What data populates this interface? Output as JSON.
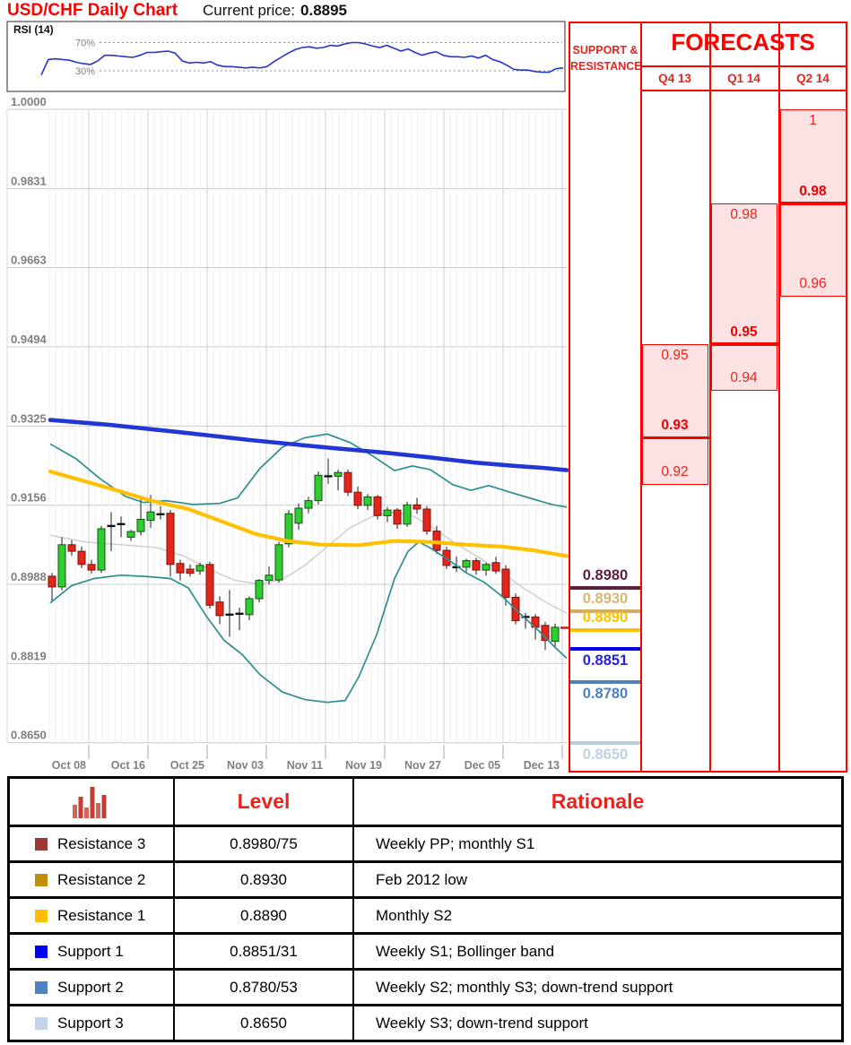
{
  "header": {
    "title": "USD/CHF Daily Chart",
    "price_label": "Current price:",
    "price_value": "0.8895"
  },
  "chart_data": {
    "type": "candlestick",
    "title": "USD/CHF Daily Chart",
    "current_price": 0.8895,
    "y_axis": {
      "labels": [
        "1.0000",
        "0.9831",
        "0.9663",
        "0.9494",
        "0.9325",
        "0.9156",
        "0.8988",
        "0.8819",
        "0.8650"
      ],
      "min": 0.865,
      "max": 1.0
    },
    "x_axis": {
      "labels": [
        "Oct 08",
        "Oct 16",
        "Oct 25",
        "Nov 03",
        "Nov 11",
        "Nov 19",
        "Nov 27",
        "Dec 05",
        "Dec 13"
      ]
    },
    "rsi": {
      "label": "RSI (14)",
      "overbought_label": "70%",
      "oversold_label": "30%",
      "line_color": "#2633cc",
      "values": [
        24,
        46,
        47,
        46,
        45,
        42,
        40,
        39,
        44,
        52,
        52,
        51,
        50,
        49,
        52,
        56,
        56,
        57,
        58,
        55,
        44,
        41,
        42,
        41,
        43,
        38,
        36,
        36,
        35,
        34,
        35,
        34,
        36,
        43,
        49,
        55,
        60,
        63,
        64,
        62,
        63,
        66,
        65,
        68,
        70,
        70,
        68,
        65,
        63,
        66,
        62,
        58,
        61,
        56,
        52,
        55,
        57,
        52,
        50,
        50,
        49,
        51,
        48,
        52,
        46,
        43,
        38,
        32,
        31,
        31,
        29,
        28,
        28,
        33,
        34
      ]
    },
    "candles_ohlc": [
      [
        0.9005,
        0.9012,
        0.8953,
        0.8982
      ],
      [
        0.8982,
        0.9088,
        0.8975,
        0.9072
      ],
      [
        0.9072,
        0.9082,
        0.9048,
        0.9058
      ],
      [
        0.9058,
        0.9068,
        0.9022,
        0.903
      ],
      [
        0.903,
        0.904,
        0.901,
        0.9018
      ],
      [
        0.9018,
        0.9112,
        0.9012,
        0.9106
      ],
      [
        0.9108,
        0.9142,
        0.9058,
        0.9112
      ],
      [
        0.9112,
        0.9132,
        0.9088,
        0.9116
      ],
      [
        0.9088,
        0.9104,
        0.908,
        0.91
      ],
      [
        0.91,
        0.9176,
        0.9092,
        0.9126
      ],
      [
        0.9124,
        0.9178,
        0.9108,
        0.9142
      ],
      [
        0.914,
        0.9154,
        0.9126,
        0.9137
      ],
      [
        0.9139,
        0.9146,
        0.9004,
        0.903
      ],
      [
        0.9032,
        0.904,
        0.8996,
        0.9012
      ],
      [
        0.902,
        0.903,
        0.9004,
        0.9011
      ],
      [
        0.9016,
        0.9034,
        0.9008,
        0.9028
      ],
      [
        0.903,
        0.9036,
        0.8936,
        0.8943
      ],
      [
        0.895,
        0.8962,
        0.8903,
        0.8921
      ],
      [
        0.8921,
        0.8976,
        0.8876,
        0.8923
      ],
      [
        0.8923,
        0.8938,
        0.889,
        0.8925
      ],
      [
        0.8923,
        0.8962,
        0.8911,
        0.8957
      ],
      [
        0.8957,
        0.8999,
        0.8949,
        0.8996
      ],
      [
        0.8996,
        0.9026,
        0.8987,
        0.9007
      ],
      [
        0.8997,
        0.9078,
        0.8991,
        0.9072
      ],
      [
        0.9074,
        0.9146,
        0.9066,
        0.9138
      ],
      [
        0.9118,
        0.916,
        0.9104,
        0.915
      ],
      [
        0.915,
        0.9174,
        0.9139,
        0.9166
      ],
      [
        0.9166,
        0.9228,
        0.9158,
        0.922
      ],
      [
        0.9221,
        0.9256,
        0.9202,
        0.9218
      ],
      [
        0.9218,
        0.9232,
        0.9188,
        0.9226
      ],
      [
        0.9226,
        0.9232,
        0.9176,
        0.9184
      ],
      [
        0.9184,
        0.9196,
        0.9148,
        0.9156
      ],
      [
        0.9156,
        0.918,
        0.9146,
        0.9174
      ],
      [
        0.9174,
        0.9178,
        0.9126,
        0.9134
      ],
      [
        0.9134,
        0.9152,
        0.912,
        0.9146
      ],
      [
        0.9146,
        0.915,
        0.9106,
        0.9116
      ],
      [
        0.9116,
        0.9164,
        0.911,
        0.9157
      ],
      [
        0.9157,
        0.9172,
        0.9138,
        0.9148
      ],
      [
        0.9148,
        0.9154,
        0.9093,
        0.9101
      ],
      [
        0.9101,
        0.9112,
        0.9052,
        0.906
      ],
      [
        0.906,
        0.9068,
        0.902,
        0.9028
      ],
      [
        0.9028,
        0.9047,
        0.9014,
        0.9024
      ],
      [
        0.9024,
        0.9042,
        0.9011,
        0.9038
      ],
      [
        0.9038,
        0.9044,
        0.9008,
        0.9018
      ],
      [
        0.9018,
        0.9034,
        0.9006,
        0.903
      ],
      [
        0.9034,
        0.9046,
        0.901,
        0.9016
      ],
      [
        0.902,
        0.9028,
        0.8942,
        0.896
      ],
      [
        0.896,
        0.8968,
        0.8902,
        0.891
      ],
      [
        0.8913,
        0.8927,
        0.8893,
        0.8918
      ],
      [
        0.8918,
        0.8924,
        0.887,
        0.8896
      ],
      [
        0.89,
        0.8908,
        0.8848,
        0.8868
      ],
      [
        0.8866,
        0.8904,
        0.8852,
        0.8896
      ]
    ],
    "overlays": {
      "ma_long_blue": {
        "color": "#2236d6",
        "points": [
          [
            56,
            0.9338
          ],
          [
            120,
            0.9328
          ],
          [
            200,
            0.9312
          ],
          [
            280,
            0.9295
          ],
          [
            360,
            0.928
          ],
          [
            430,
            0.9268
          ],
          [
            480,
            0.9258
          ],
          [
            530,
            0.9247
          ],
          [
            575,
            0.924
          ],
          [
            605,
            0.9236
          ],
          [
            632,
            0.9231
          ]
        ]
      },
      "ma_short_yellow": {
        "color": "#ffc000",
        "points": [
          [
            56,
            0.9228
          ],
          [
            90,
            0.921
          ],
          [
            130,
            0.9188
          ],
          [
            170,
            0.9165
          ],
          [
            210,
            0.9148
          ],
          [
            250,
            0.912
          ],
          [
            285,
            0.9095
          ],
          [
            320,
            0.908
          ],
          [
            360,
            0.9072
          ],
          [
            400,
            0.9071
          ],
          [
            440,
            0.908
          ],
          [
            480,
            0.9078
          ],
          [
            520,
            0.9072
          ],
          [
            560,
            0.9068
          ],
          [
            595,
            0.906
          ],
          [
            632,
            0.9048
          ]
        ]
      },
      "bollinger_upper": {
        "color": "#2f8e8e",
        "points": [
          [
            56,
            0.9287
          ],
          [
            85,
            0.9255
          ],
          [
            110,
            0.9215
          ],
          [
            140,
            0.9175
          ],
          [
            160,
            0.9162
          ],
          [
            185,
            0.9166
          ],
          [
            215,
            0.9158
          ],
          [
            245,
            0.916
          ],
          [
            265,
            0.9172
          ],
          [
            290,
            0.9235
          ],
          [
            315,
            0.928
          ],
          [
            340,
            0.93
          ],
          [
            365,
            0.9308
          ],
          [
            390,
            0.929
          ],
          [
            415,
            0.9262
          ],
          [
            440,
            0.923
          ],
          [
            460,
            0.924
          ],
          [
            480,
            0.9232
          ],
          [
            505,
            0.92
          ],
          [
            525,
            0.9188
          ],
          [
            545,
            0.9198
          ],
          [
            565,
            0.9186
          ],
          [
            590,
            0.9172
          ],
          [
            615,
            0.9158
          ],
          [
            632,
            0.9152
          ]
        ]
      },
      "bollinger_lower": {
        "color": "#2f8e8e",
        "points": [
          [
            56,
            0.8948
          ],
          [
            80,
            0.8985
          ],
          [
            105,
            0.9
          ],
          [
            135,
            0.9007
          ],
          [
            165,
            0.9004
          ],
          [
            190,
            0.9
          ],
          [
            210,
            0.898
          ],
          [
            230,
            0.892
          ],
          [
            250,
            0.8868
          ],
          [
            270,
            0.8838
          ],
          [
            290,
            0.8795
          ],
          [
            315,
            0.8758
          ],
          [
            340,
            0.8742
          ],
          [
            365,
            0.8736
          ],
          [
            385,
            0.874
          ],
          [
            400,
            0.879
          ],
          [
            420,
            0.888
          ],
          [
            440,
            0.9
          ],
          [
            455,
            0.9058
          ],
          [
            467,
            0.9078
          ],
          [
            480,
            0.9065
          ],
          [
            500,
            0.904
          ],
          [
            520,
            0.9012
          ],
          [
            540,
            0.8992
          ],
          [
            560,
            0.8962
          ],
          [
            580,
            0.8925
          ],
          [
            600,
            0.889
          ],
          [
            618,
            0.8855
          ],
          [
            632,
            0.883
          ]
        ]
      },
      "bollinger_mid": {
        "color": "#cccccc",
        "points": [
          [
            56,
            0.9092
          ],
          [
            95,
            0.9078
          ],
          [
            135,
            0.9072
          ],
          [
            175,
            0.9066
          ],
          [
            205,
            0.9048
          ],
          [
            235,
            0.9018
          ],
          [
            262,
            0.8996
          ],
          [
            290,
            0.8988
          ],
          [
            315,
            0.8998
          ],
          [
            340,
            0.9028
          ],
          [
            365,
            0.9068
          ],
          [
            390,
            0.9108
          ],
          [
            415,
            0.9132
          ],
          [
            440,
            0.9142
          ],
          [
            462,
            0.9132
          ],
          [
            485,
            0.9105
          ],
          [
            510,
            0.9072
          ],
          [
            535,
            0.9044
          ],
          [
            560,
            0.9012
          ],
          [
            585,
            0.8978
          ],
          [
            610,
            0.8948
          ],
          [
            632,
            0.8926
          ]
        ]
      }
    },
    "candle_up_color": "#2fce2f",
    "candle_down_color": "#e3251b"
  },
  "support_resistance": {
    "header_line1": "SUPPORT &",
    "header_line2": "RESISTANCE",
    "levels": [
      {
        "label": "0.8980",
        "price": 0.898,
        "side": "above",
        "line_color": "#5e1f3f",
        "text_color": "#5e1f3f"
      },
      {
        "label": "0.8930",
        "price": 0.893,
        "side": "above",
        "line_color": "#d3ad60",
        "text_color": "#d7b570"
      },
      {
        "label": "0.8890",
        "price": 0.889,
        "side": "above",
        "line_color": "#ffc000",
        "text_color": "#ffc000"
      },
      {
        "label": "0.8851",
        "price": 0.8851,
        "side": "below",
        "line_color": "#0202ee",
        "text_color": "#2525dc"
      },
      {
        "label": "0.8780",
        "price": 0.878,
        "side": "below",
        "line_color": "#4f81bd",
        "text_color": "#4f81bd"
      },
      {
        "label": "0.8650",
        "price": 0.865,
        "side": "below",
        "line_color": "#b9cfdd",
        "text_color": "#bdd3e0"
      }
    ]
  },
  "forecasts": {
    "title": "FORECASTS",
    "quarters": [
      {
        "label": "Q4 13",
        "range_high": 0.95,
        "range_low": 0.92,
        "forecast": 0.93,
        "high_label": "0.95",
        "forecast_label": "0.93",
        "low_label": "0.92"
      },
      {
        "label": "Q1 14",
        "range_high": 0.98,
        "range_low": 0.94,
        "forecast": 0.95,
        "high_label": "0.98",
        "forecast_label": "0.95",
        "low_label": "0.94"
      },
      {
        "label": "Q2 14",
        "range_high": 1.0,
        "range_low": 0.96,
        "forecast": 0.98,
        "high_label": "1",
        "forecast_label": "0.98",
        "low_label": "0.96"
      }
    ]
  },
  "table": {
    "level_header": "Level",
    "rationale_header": "Rationale",
    "icon": "histogram-icon",
    "rows": [
      {
        "series": "Resistance 3",
        "color": "#9a3838",
        "level": "0.8980/75",
        "rationale": "Weekly PP; monthly S1"
      },
      {
        "series": "Resistance 2",
        "color": "#c08f06",
        "level": "0.8930",
        "rationale": "Feb 2012 low"
      },
      {
        "series": "Resistance 1",
        "color": "#ffc003",
        "level": "0.8890",
        "rationale": "Monthly S2"
      },
      {
        "series": "Support 1",
        "color": "#0000fe",
        "level": "0.8851/31",
        "rationale": "Weekly S1; Bollinger band"
      },
      {
        "series": "Support 2",
        "color": "#4f81bd",
        "level": "0.8780/53",
        "rationale": "Weekly S2; monthly S3; down-trend support"
      },
      {
        "series": "Support 3",
        "color": "#c3d4e9",
        "level": "0.8650",
        "rationale": "Weekly S3; down-trend support"
      }
    ]
  }
}
